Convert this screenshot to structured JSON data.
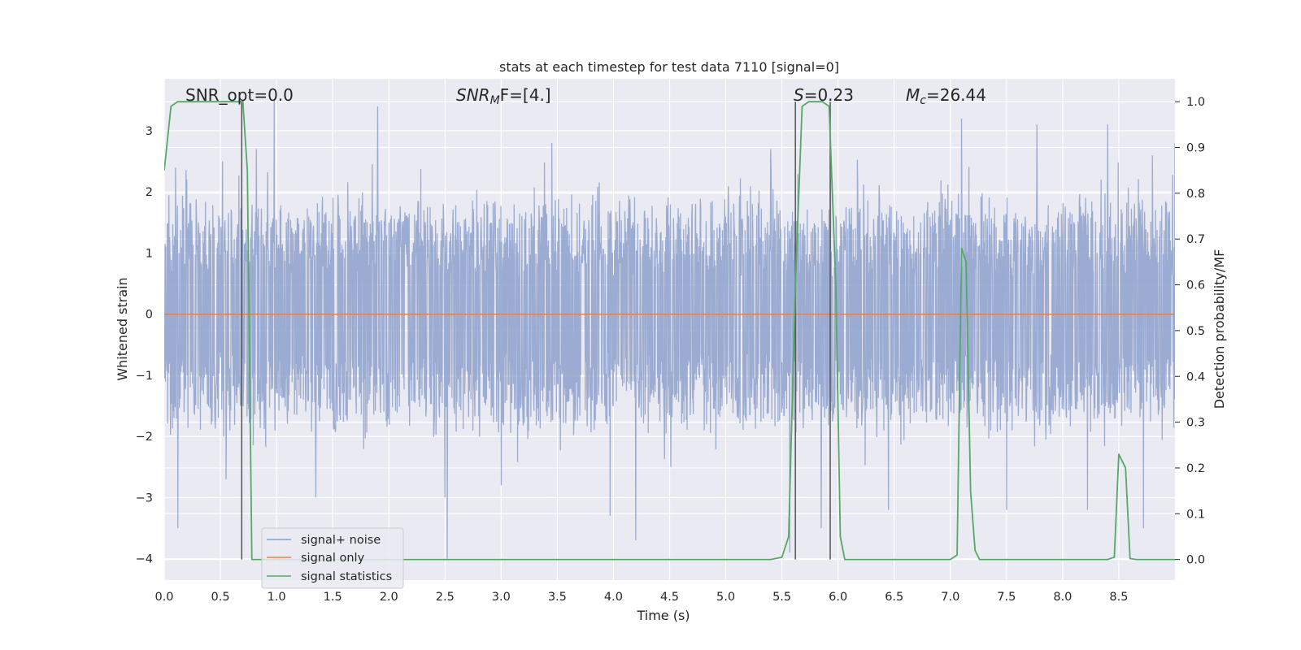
{
  "chart_data": {
    "type": "line",
    "title": "stats at each timestep for test data 7110 [signal=0]",
    "xlabel": "Time (s)",
    "ylabel_left": "Whitened strain",
    "ylabel_right": "Detection probability/MF",
    "xlim": [
      0.0,
      9.0
    ],
    "ylim_left": [
      -4.35,
      3.85
    ],
    "ylim_right": [
      -0.045,
      1.05
    ],
    "x_ticks": [
      "0.0",
      "0.5",
      "1.0",
      "1.5",
      "2.0",
      "2.5",
      "3.0",
      "3.5",
      "4.0",
      "4.5",
      "5.0",
      "5.5",
      "6.0",
      "6.5",
      "7.0",
      "7.5",
      "8.0",
      "8.5"
    ],
    "x_tick_values": [
      0.0,
      0.5,
      1.0,
      1.5,
      2.0,
      2.5,
      3.0,
      3.5,
      4.0,
      4.5,
      5.0,
      5.5,
      6.0,
      6.5,
      7.0,
      7.5,
      8.0,
      8.5
    ],
    "y_left_ticks": [
      "−4",
      "−3",
      "−2",
      "−1",
      "0",
      "1",
      "2",
      "3"
    ],
    "y_left_tick_values": [
      -4,
      -3,
      -2,
      -1,
      0,
      1,
      2,
      3
    ],
    "y_right_ticks": [
      "0.0",
      "0.1",
      "0.2",
      "0.3",
      "0.4",
      "0.5",
      "0.6",
      "0.7",
      "0.8",
      "0.9",
      "1.0"
    ],
    "y_right_tick_values": [
      0.0,
      0.1,
      0.2,
      0.3,
      0.4,
      0.5,
      0.6,
      0.7,
      0.8,
      0.9,
      1.0
    ],
    "grid": true,
    "legend_placement": "lower-left",
    "colors": {
      "noise": "#8da0cb",
      "signal": "#dd8452",
      "stats": "#55a868",
      "vline": "#555555",
      "axes_bg": "#eaeaf2",
      "grid": "#ffffff"
    },
    "annotations": [
      {
        "text": "SNR_opt=0.0"
      },
      {
        "text": "F=[4.]",
        "math_base": "SNR",
        "math_sub": "M"
      },
      {
        "text": "=0.23",
        "math_base": "S"
      },
      {
        "text": "=26.44",
        "math_base": "M",
        "math_sub": "c"
      }
    ],
    "vertical_lines_x": [
      0.69,
      5.62,
      5.93
    ],
    "noise_envelope": {
      "x": [
        0.0,
        9.0
      ],
      "upper_typical": 1.9,
      "lower_typical": -1.9,
      "spike_up": [
        [
          0.1,
          2.4
        ],
        [
          0.52,
          2.5
        ],
        [
          0.82,
          2.7
        ],
        [
          0.98,
          3.5
        ],
        [
          1.9,
          3.4
        ],
        [
          3.45,
          2.8
        ],
        [
          5.4,
          2.7
        ],
        [
          5.85,
          3.3
        ],
        [
          7.1,
          3.2
        ],
        [
          7.5,
          3.1
        ],
        [
          7.77,
          3.1
        ],
        [
          8.4,
          3.1
        ],
        [
          8.8,
          2.6
        ],
        [
          9.0,
          2.8
        ]
      ],
      "spike_down": [
        [
          0.12,
          -3.5
        ],
        [
          0.55,
          -2.7
        ],
        [
          1.35,
          -3.0
        ],
        [
          2.5,
          -3.0
        ],
        [
          2.52,
          -4.0
        ],
        [
          3.0,
          -2.8
        ],
        [
          3.97,
          -3.3
        ],
        [
          4.2,
          -3.7
        ],
        [
          5.57,
          -3.9
        ],
        [
          5.85,
          -3.5
        ],
        [
          6.45,
          -3.2
        ],
        [
          7.5,
          -3.2
        ],
        [
          8.22,
          -3.2
        ],
        [
          8.72,
          -3.5
        ]
      ]
    },
    "series": [
      {
        "name": "signal+ noise",
        "axis": "left",
        "kind": "noise"
      },
      {
        "name": "signal only",
        "axis": "left",
        "x": [
          0.0,
          9.0
        ],
        "y": [
          0.0,
          0.0
        ]
      },
      {
        "name": "signal statistics",
        "axis": "right",
        "x": [
          0.0,
          0.06,
          0.12,
          0.18,
          0.24,
          0.3,
          0.36,
          0.42,
          0.48,
          0.54,
          0.6,
          0.66,
          0.7,
          0.74,
          0.78,
          0.82,
          0.86,
          0.92,
          1.0,
          1.5,
          2.0,
          2.5,
          3.0,
          3.5,
          4.0,
          4.5,
          5.0,
          5.4,
          5.5,
          5.56,
          5.62,
          5.68,
          5.74,
          5.8,
          5.86,
          5.92,
          5.98,
          6.02,
          6.06,
          6.1,
          6.5,
          7.0,
          7.06,
          7.1,
          7.14,
          7.18,
          7.22,
          7.26,
          7.32,
          7.4,
          8.0,
          8.4,
          8.46,
          8.5,
          8.56,
          8.6,
          8.66,
          9.0
        ],
        "y": [
          0.85,
          0.99,
          1.0,
          1.0,
          1.0,
          1.0,
          1.0,
          1.0,
          1.0,
          1.0,
          1.0,
          1.0,
          1.0,
          0.85,
          0.0,
          0.0,
          0.0,
          0.0,
          0.0,
          0.0,
          0.0,
          0.0,
          0.0,
          0.0,
          0.0,
          0.0,
          0.0,
          0.0,
          0.005,
          0.05,
          0.6,
          0.99,
          1.0,
          1.0,
          1.0,
          0.99,
          0.6,
          0.05,
          0.0,
          0.0,
          0.0,
          0.0,
          0.01,
          0.68,
          0.65,
          0.15,
          0.02,
          0.0,
          0.0,
          0.0,
          0.0,
          0.0,
          0.005,
          0.23,
          0.2,
          0.002,
          0.0,
          0.0
        ]
      }
    ]
  }
}
